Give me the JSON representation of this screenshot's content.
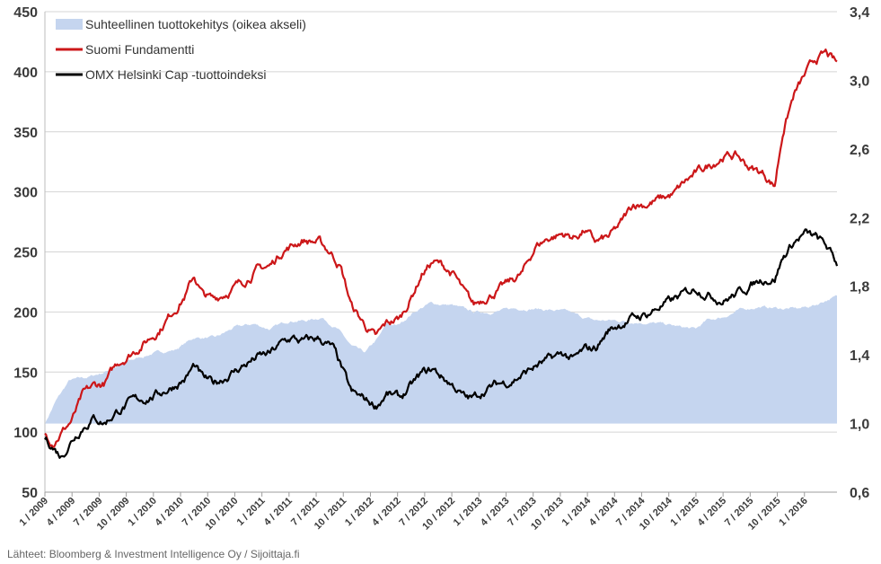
{
  "chart_data": {
    "type": "line",
    "title": "",
    "source": "Lähteet: Bloomberg & Investment Intelligence Oy / Sijoittaja.fi",
    "legend_position": "top-left",
    "grid": true,
    "left_axis": {
      "ylim": [
        50,
        450
      ],
      "ticks": [
        "50",
        "100",
        "150",
        "200",
        "250",
        "300",
        "350",
        "400",
        "450"
      ]
    },
    "right_axis": {
      "ylim": [
        0.6,
        3.4
      ],
      "ticks": [
        "0,6",
        "1,0",
        "1,4",
        "1,8",
        "2,2",
        "2,6",
        "3,0",
        "3,4"
      ]
    },
    "x_ticks": [
      "1 / 2009",
      "4 / 2009",
      "7 / 2009",
      "10 / 2009",
      "1 / 2010",
      "4 / 2010",
      "7 / 2010",
      "10 / 2010",
      "1 / 2011",
      "4 / 2011",
      "7 / 2011",
      "10 / 2011",
      "1 / 2012",
      "4 / 2012",
      "7 / 2012",
      "10 / 2012",
      "1 / 2013",
      "4 / 2013",
      "7 / 2013",
      "10 / 2013",
      "1 / 2014",
      "4 / 2014",
      "7 / 2014",
      "10 / 2014",
      "1 / 2015",
      "4 / 2015",
      "7 / 2015",
      "10 / 2015",
      "1 / 2016"
    ],
    "x_range": [
      0,
      29.2
    ],
    "series": [
      {
        "name": "Suhteellinen tuottokehitys (oikea akseli)",
        "axis": "right",
        "style": "area",
        "color": "#c5d5ef",
        "points": [
          [
            0,
            1.0
          ],
          [
            0.4,
            1.13
          ],
          [
            0.9,
            1.25
          ],
          [
            1.6,
            1.27
          ],
          [
            2.2,
            1.3
          ],
          [
            3,
            1.36
          ],
          [
            4,
            1.41
          ],
          [
            4.8,
            1.43
          ],
          [
            5.5,
            1.5
          ],
          [
            6.3,
            1.5
          ],
          [
            7,
            1.56
          ],
          [
            7.7,
            1.58
          ],
          [
            8.3,
            1.55
          ],
          [
            9,
            1.6
          ],
          [
            9.7,
            1.6
          ],
          [
            10.2,
            1.62
          ],
          [
            10.8,
            1.55
          ],
          [
            11.3,
            1.45
          ],
          [
            11.8,
            1.41
          ],
          [
            12.3,
            1.5
          ],
          [
            12.6,
            1.58
          ],
          [
            13,
            1.57
          ],
          [
            13.6,
            1.65
          ],
          [
            14.2,
            1.7
          ],
          [
            15,
            1.69
          ],
          [
            15.8,
            1.65
          ],
          [
            16.5,
            1.65
          ],
          [
            17.3,
            1.67
          ],
          [
            18,
            1.67
          ],
          [
            18.7,
            1.66
          ],
          [
            19.3,
            1.65
          ],
          [
            19.8,
            1.62
          ],
          [
            20.3,
            1.6
          ],
          [
            21,
            1.6
          ],
          [
            22,
            1.59
          ],
          [
            22.8,
            1.58
          ],
          [
            23.5,
            1.56
          ],
          [
            24,
            1.55
          ],
          [
            24.4,
            1.6
          ],
          [
            25,
            1.62
          ],
          [
            25.6,
            1.66
          ],
          [
            26.3,
            1.68
          ],
          [
            27.2,
            1.67
          ],
          [
            27.8,
            1.67
          ],
          [
            28.4,
            1.69
          ],
          [
            28.8,
            1.72
          ],
          [
            29.2,
            1.74
          ]
        ]
      },
      {
        "name": "Suomi Fundamentti",
        "axis": "left",
        "style": "line",
        "color": "#cc1719",
        "points": [
          [
            0,
            98
          ],
          [
            0.3,
            93
          ],
          [
            0.6,
            100
          ],
          [
            1,
            110
          ],
          [
            1.4,
            130
          ],
          [
            1.8,
            138
          ],
          [
            2.2,
            140
          ],
          [
            2.7,
            158
          ],
          [
            3.2,
            166
          ],
          [
            3.7,
            175
          ],
          [
            4.2,
            185
          ],
          [
            4.7,
            200
          ],
          [
            5.2,
            215
          ],
          [
            5.5,
            230
          ],
          [
            5.8,
            215
          ],
          [
            6.2,
            210
          ],
          [
            6.8,
            218
          ],
          [
            7.3,
            225
          ],
          [
            7.8,
            235
          ],
          [
            8.3,
            238
          ],
          [
            8.8,
            252
          ],
          [
            9.1,
            255
          ],
          [
            9.5,
            260
          ],
          [
            10.1,
            258
          ],
          [
            10.6,
            248
          ],
          [
            10.9,
            238
          ],
          [
            11.3,
            205
          ],
          [
            11.7,
            192
          ],
          [
            12.2,
            178
          ],
          [
            12.6,
            190
          ],
          [
            13.1,
            195
          ],
          [
            13.5,
            212
          ],
          [
            13.9,
            232
          ],
          [
            14.3,
            242
          ],
          [
            14.7,
            238
          ],
          [
            15.1,
            230
          ],
          [
            15.5,
            214
          ],
          [
            15.8,
            205
          ],
          [
            16.2,
            212
          ],
          [
            16.7,
            218
          ],
          [
            17.1,
            224
          ],
          [
            17.6,
            232
          ],
          [
            18.1,
            255
          ],
          [
            18.6,
            262
          ],
          [
            19.1,
            265
          ],
          [
            19.5,
            262
          ],
          [
            19.9,
            268
          ],
          [
            20.3,
            258
          ],
          [
            20.8,
            262
          ],
          [
            21.2,
            272
          ],
          [
            21.7,
            290
          ],
          [
            22.2,
            290
          ],
          [
            22.7,
            294
          ],
          [
            23.2,
            298
          ],
          [
            23.6,
            308
          ],
          [
            24,
            315
          ],
          [
            24.5,
            322
          ],
          [
            25,
            330
          ],
          [
            25.5,
            330
          ],
          [
            26,
            320
          ],
          [
            26.5,
            315
          ],
          [
            26.9,
            305
          ],
          [
            27.2,
            350
          ],
          [
            27.6,
            380
          ],
          [
            28,
            396
          ],
          [
            28.4,
            410
          ],
          [
            28.8,
            415
          ],
          [
            29.2,
            406
          ]
        ]
      },
      {
        "name": "OMX Helsinki Cap -tuottoindeksi",
        "axis": "left",
        "style": "line",
        "color": "#000000",
        "points": [
          [
            0,
            95
          ],
          [
            0.3,
            88
          ],
          [
            0.6,
            80
          ],
          [
            1,
            94
          ],
          [
            1.4,
            105
          ],
          [
            1.8,
            112
          ],
          [
            2.2,
            108
          ],
          [
            2.7,
            118
          ],
          [
            3.2,
            125
          ],
          [
            3.7,
            128
          ],
          [
            4.2,
            132
          ],
          [
            4.7,
            138
          ],
          [
            5.2,
            145
          ],
          [
            5.5,
            155
          ],
          [
            5.8,
            145
          ],
          [
            6.2,
            140
          ],
          [
            6.8,
            148
          ],
          [
            7.3,
            155
          ],
          [
            7.8,
            162
          ],
          [
            8.3,
            165
          ],
          [
            8.8,
            175
          ],
          [
            9.1,
            178
          ],
          [
            9.5,
            175
          ],
          [
            10.1,
            178
          ],
          [
            10.6,
            170
          ],
          [
            10.9,
            155
          ],
          [
            11.3,
            132
          ],
          [
            11.7,
            128
          ],
          [
            12.2,
            122
          ],
          [
            12.6,
            132
          ],
          [
            13.1,
            128
          ],
          [
            13.5,
            138
          ],
          [
            13.9,
            148
          ],
          [
            14.3,
            152
          ],
          [
            14.7,
            145
          ],
          [
            15.1,
            138
          ],
          [
            15.5,
            128
          ],
          [
            15.8,
            128
          ],
          [
            16.2,
            135
          ],
          [
            16.7,
            140
          ],
          [
            17.1,
            142
          ],
          [
            17.6,
            148
          ],
          [
            18.1,
            155
          ],
          [
            18.6,
            160
          ],
          [
            19.1,
            165
          ],
          [
            19.5,
            160
          ],
          [
            19.9,
            168
          ],
          [
            20.3,
            170
          ],
          [
            20.8,
            185
          ],
          [
            21.2,
            190
          ],
          [
            21.7,
            195
          ],
          [
            22.2,
            198
          ],
          [
            22.7,
            205
          ],
          [
            23.2,
            210
          ],
          [
            23.6,
            215
          ],
          [
            24,
            220
          ],
          [
            24.5,
            215
          ],
          [
            25,
            210
          ],
          [
            25.5,
            215
          ],
          [
            26,
            222
          ],
          [
            26.5,
            228
          ],
          [
            26.9,
            228
          ],
          [
            27.2,
            245
          ],
          [
            27.6,
            258
          ],
          [
            28,
            265
          ],
          [
            28.4,
            262
          ],
          [
            28.8,
            255
          ],
          [
            29.2,
            240
          ]
        ]
      }
    ]
  }
}
